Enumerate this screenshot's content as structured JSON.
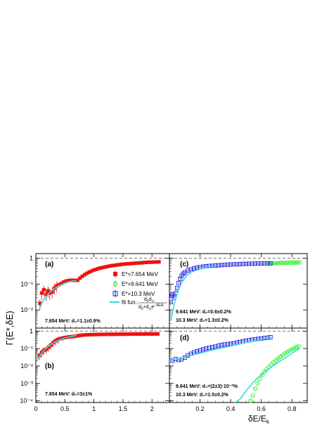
{
  "figure": {
    "ylabel": "Γ(E*,δE)",
    "xlabel": "δE/E",
    "xlabel_sub": "k"
  },
  "legend": {
    "entries": [
      {
        "label": "E*=7.654 MeV",
        "color": "#ee1111",
        "marker": "filled-square"
      },
      {
        "label": "E*=9.641 MeV",
        "color": "#22ee22",
        "marker": "open-circle"
      },
      {
        "label": "E*=10.3 MeV",
        "color": "#1f1fe0",
        "marker": "open-square"
      }
    ],
    "fit_label": "fit fun.:",
    "fit_num": "d",
    "fit_num_sub": "0",
    "fit_num2": "d",
    "fit_num2_sub": "∞",
    "fit_den": "d",
    "fit_den_sub": "0",
    "fit_den2": "+d",
    "fit_den2_sub": "∞",
    "fit_den3": "e",
    "fit_den3_sup": "−δE/E",
    "fit_color": "#33dddd"
  },
  "colors": {
    "red": "#ee1111",
    "green": "#22ee22",
    "blue": "#1f1fe0",
    "cyan": "#33dddd",
    "dashed": "#777777"
  },
  "chart_data": [
    {
      "panel": "(a)",
      "type": "scatter",
      "xlim": [
        0,
        2.3
      ],
      "ylim": [
        0.002,
        1.5
      ],
      "yscale": "log",
      "yticks": [
        "10⁻²",
        "10⁻¹",
        "1"
      ],
      "annotation": "7.654 MeV: d₀=1.1±0.9%",
      "series": [
        {
          "name": "E*=7.654 MeV",
          "color": "red",
          "x": [
            0.07,
            0.1,
            0.14,
            0.18,
            0.21,
            0.24,
            0.28,
            0.32,
            0.36,
            0.4,
            0.44,
            0.48,
            0.52,
            0.56,
            0.6,
            0.64,
            0.68,
            0.72,
            0.76,
            0.8,
            0.84,
            0.88,
            0.92,
            0.96,
            1.0,
            1.04,
            1.08,
            1.12,
            1.16,
            1.2,
            1.24,
            1.28,
            1.32,
            1.36,
            1.4,
            1.44,
            1.48,
            1.52,
            1.56,
            1.6,
            1.64,
            1.68,
            1.72,
            1.76,
            1.8,
            1.84,
            1.88,
            1.92,
            1.96,
            2.0,
            2.04,
            2.08,
            2.12
          ],
          "y": [
            0.018,
            0.045,
            0.06,
            0.04,
            0.055,
            0.045,
            0.05,
            0.07,
            0.085,
            0.095,
            0.105,
            0.12,
            0.13,
            0.135,
            0.14,
            0.14,
            0.14,
            0.14,
            0.17,
            0.2,
            0.23,
            0.26,
            0.29,
            0.32,
            0.35,
            0.37,
            0.4,
            0.42,
            0.44,
            0.46,
            0.48,
            0.5,
            0.52,
            0.53,
            0.55,
            0.56,
            0.58,
            0.59,
            0.6,
            0.61,
            0.62,
            0.63,
            0.64,
            0.65,
            0.66,
            0.67,
            0.68,
            0.69,
            0.7,
            0.7,
            0.71,
            0.71,
            0.72
          ]
        },
        {
          "name": "fit",
          "color": "cyan",
          "x": [
            0.07,
            0.1,
            0.15,
            0.2,
            0.25,
            0.3,
            0.35,
            0.4,
            0.45,
            0.5,
            0.55,
            0.6,
            0.65,
            0.7
          ],
          "y": [
            0.012,
            0.018,
            0.028,
            0.038,
            0.05,
            0.062,
            0.074,
            0.086,
            0.097,
            0.108,
            0.118,
            0.127,
            0.134,
            0.14
          ]
        }
      ]
    },
    {
      "panel": "(b)",
      "type": "scatter",
      "xlim": [
        0,
        2.3
      ],
      "ylim": [
        8e-05,
        1.5
      ],
      "yscale": "log",
      "yticks": [
        "10⁻⁴",
        "10⁻³",
        "10⁻²",
        "10⁻¹",
        "1"
      ],
      "xticks": [
        "0",
        "0.5",
        "1",
        "1.5",
        "2"
      ],
      "annotation": "7.654 MeV: d₀=3±1%",
      "series": [
        {
          "name": "E*=7.654 MeV",
          "color": "red",
          "x": [
            0.06,
            0.1,
            0.14,
            0.18,
            0.22,
            0.26,
            0.3,
            0.34,
            0.38,
            0.42,
            0.46,
            0.5,
            0.54,
            0.58,
            0.62,
            0.66,
            0.7,
            0.74,
            0.78,
            0.82,
            0.86,
            0.9,
            0.94,
            0.98,
            1.02,
            1.06,
            1.1,
            1.14,
            1.18,
            1.22,
            1.26,
            1.3,
            1.34,
            1.38,
            1.42,
            1.46,
            1.5,
            1.54,
            1.58,
            1.62,
            1.66,
            1.7,
            1.74,
            1.78,
            1.82,
            1.86,
            1.9,
            1.94,
            1.98,
            2.02,
            2.06,
            2.1
          ],
          "y": [
            0.04,
            0.06,
            0.08,
            0.09,
            0.12,
            0.16,
            0.22,
            0.28,
            0.33,
            0.37,
            0.4,
            0.43,
            0.45,
            0.47,
            0.48,
            0.5,
            0.52,
            0.55,
            0.58,
            0.6,
            0.61,
            0.62,
            0.63,
            0.63,
            0.64,
            0.64,
            0.65,
            0.65,
            0.65,
            0.66,
            0.66,
            0.66,
            0.66,
            0.67,
            0.67,
            0.67,
            0.67,
            0.67,
            0.67,
            0.68,
            0.68,
            0.68,
            0.68,
            0.68,
            0.68,
            0.68,
            0.69,
            0.69,
            0.69,
            0.69,
            0.69,
            0.69
          ]
        },
        {
          "name": "fit",
          "color": "cyan",
          "x": [
            0.02,
            0.06,
            0.1,
            0.15,
            0.2,
            0.25,
            0.3,
            0.35,
            0.4,
            0.45,
            0.5,
            0.55,
            0.6,
            0.65,
            0.7
          ],
          "y": [
            0.02,
            0.035,
            0.055,
            0.085,
            0.12,
            0.16,
            0.21,
            0.26,
            0.31,
            0.36,
            0.41,
            0.45,
            0.49,
            0.53,
            0.57
          ]
        }
      ]
    },
    {
      "panel": "(c)",
      "type": "scatter",
      "xlim": [
        0,
        0.9
      ],
      "ylim": [
        0.002,
        1.5
      ],
      "yscale": "log",
      "annotation1": "9.641 MeV: d₀=0.6±0.2%",
      "annotation2": "10.3 MeV: d₀=1.3±0.2%",
      "series": [
        {
          "name": "E*=9.641 MeV",
          "color": "green",
          "x": [
            0.64,
            0.655,
            0.67,
            0.685,
            0.7,
            0.715,
            0.73,
            0.745,
            0.76,
            0.775,
            0.79,
            0.805,
            0.82,
            0.835,
            0.85
          ],
          "y": [
            0.62,
            0.63,
            0.64,
            0.64,
            0.65,
            0.65,
            0.66,
            0.66,
            0.66,
            0.67,
            0.67,
            0.67,
            0.68,
            0.68,
            0.68
          ]
        },
        {
          "name": "E*=10.3 MeV",
          "color": "blue",
          "x": [
            0.01,
            0.015,
            0.02,
            0.03,
            0.04,
            0.05,
            0.06,
            0.07,
            0.08,
            0.09,
            0.1,
            0.12,
            0.14,
            0.16,
            0.18,
            0.2,
            0.22,
            0.24,
            0.26,
            0.28,
            0.3,
            0.32,
            0.34,
            0.36,
            0.38,
            0.4,
            0.42,
            0.44,
            0.46,
            0.48,
            0.5,
            0.52,
            0.54,
            0.56,
            0.58,
            0.6,
            0.62,
            0.64,
            0.66
          ],
          "y": [
            0.02,
            0.035,
            0.04,
            0.03,
            0.045,
            0.07,
            0.11,
            0.16,
            0.21,
            0.25,
            0.28,
            0.33,
            0.37,
            0.4,
            0.43,
            0.45,
            0.47,
            0.49,
            0.5,
            0.51,
            0.52,
            0.53,
            0.54,
            0.55,
            0.56,
            0.57,
            0.58,
            0.58,
            0.59,
            0.6,
            0.6,
            0.61,
            0.61,
            0.62,
            0.62,
            0.62,
            0.63,
            0.63,
            0.63
          ]
        },
        {
          "name": "fit",
          "color": "cyan",
          "x": [
            0.01,
            0.02,
            0.03,
            0.04,
            0.05,
            0.06,
            0.08,
            0.1,
            0.12,
            0.15,
            0.2,
            0.25,
            0.3
          ],
          "y": [
            0.004,
            0.008,
            0.015,
            0.025,
            0.04,
            0.06,
            0.11,
            0.17,
            0.23,
            0.3,
            0.38,
            0.44,
            0.48
          ]
        }
      ]
    },
    {
      "panel": "(d)",
      "type": "scatter",
      "xlim": [
        0,
        0.9
      ],
      "ylim": [
        8e-05,
        1.5
      ],
      "yscale": "log",
      "xticks": [
        "0.2",
        "0.4",
        "0.6",
        "0.8"
      ],
      "annotation1": "9.641 MeV: d₀=(2±3)·10⁻²%",
      "annotation2": "10.3 MeV: d₀=1.5±0.2%",
      "series": [
        {
          "name": "E*=10.3 MeV",
          "color": "blue",
          "x": [
            0.02,
            0.04,
            0.06,
            0.08,
            0.1,
            0.12,
            0.14,
            0.16,
            0.18,
            0.2,
            0.22,
            0.24,
            0.26,
            0.28,
            0.3,
            0.32,
            0.34,
            0.36,
            0.38,
            0.4,
            0.42,
            0.44,
            0.46,
            0.48,
            0.5,
            0.52,
            0.54,
            0.56,
            0.58,
            0.6,
            0.62,
            0.64,
            0.66
          ],
          "y": [
            0.02,
            0.025,
            0.022,
            0.024,
            0.03,
            0.04,
            0.05,
            0.06,
            0.07,
            0.08,
            0.09,
            0.1,
            0.11,
            0.12,
            0.13,
            0.145,
            0.16,
            0.17,
            0.18,
            0.19,
            0.2,
            0.22,
            0.24,
            0.26,
            0.28,
            0.3,
            0.32,
            0.34,
            0.36,
            0.38,
            0.4,
            0.42,
            0.45
          ]
        },
        {
          "name": "E*=9.641 MeV",
          "color": "green",
          "x": [
            0.53,
            0.545,
            0.56,
            0.575,
            0.59,
            0.605,
            0.62,
            0.635,
            0.65,
            0.665,
            0.68,
            0.695,
            0.71,
            0.725,
            0.74,
            0.755,
            0.77,
            0.785,
            0.8,
            0.815,
            0.83,
            0.845
          ],
          "y": [
            0.0001,
            0.0002,
            0.0005,
            0.001,
            0.0018,
            0.003,
            0.0045,
            0.0065,
            0.009,
            0.012,
            0.016,
            0.021,
            0.027,
            0.034,
            0.042,
            0.052,
            0.063,
            0.076,
            0.09,
            0.105,
            0.12,
            0.135
          ]
        },
        {
          "name": "fit",
          "color": "cyan",
          "x": [
            0.0,
            0.02,
            0.04,
            0.06,
            0.1,
            0.15,
            0.2,
            0.3,
            0.4,
            0.5,
            0.6,
            0.66
          ],
          "y": [
            0.02,
            0.024,
            0.025,
            0.027,
            0.032,
            0.042,
            0.055,
            0.09,
            0.14,
            0.22,
            0.33,
            0.42
          ]
        },
        {
          "name": "fit2",
          "color": "cyan",
          "x": [
            0.43,
            0.46,
            0.49,
            0.52,
            0.55,
            0.58,
            0.62,
            0.66,
            0.7,
            0.74,
            0.78,
            0.82,
            0.85
          ],
          "y": [
            5e-05,
            0.00012,
            0.00028,
            0.0006,
            0.0012,
            0.0022,
            0.0045,
            0.008,
            0.014,
            0.024,
            0.04,
            0.07,
            0.1
          ]
        }
      ]
    }
  ]
}
